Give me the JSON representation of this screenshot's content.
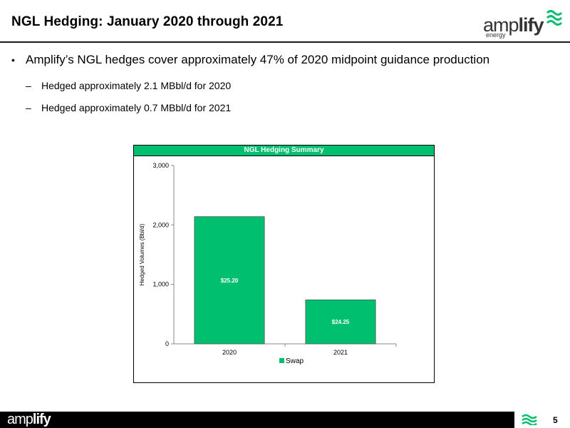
{
  "slide": {
    "title": "NGL Hedging: January 2020 through 2021",
    "bullet_main": "Amplify’s NGL hedges cover approximately 47% of 2020 midpoint guidance production",
    "sub_bullets": [
      "Hedged approximately 2.1 MBbl/d for 2020",
      "Hedged approximately 0.7 MBbl/d for 2021"
    ],
    "page_number": "5"
  },
  "logo": {
    "word_light": "amp",
    "word_bold": "lify",
    "sub": "energy"
  },
  "footer": {
    "logo_light": "amp",
    "logo_bold": "lify"
  },
  "colors": {
    "accent": "#00BF6F",
    "rule": "#1a1a1a"
  },
  "chart_data": {
    "type": "bar",
    "title": "NGL Hedging Summary",
    "categories": [
      "2020",
      "2021"
    ],
    "series": [
      {
        "name": "Swap",
        "values": [
          2140,
          740
        ],
        "labels": [
          "$25.20",
          "$24.25"
        ]
      }
    ],
    "ylabel": "Hedged Volumes (Bbl/d)",
    "xlabel": "",
    "ylim": [
      0,
      3000
    ],
    "yticks": [
      0,
      1000,
      2000,
      3000
    ],
    "ytick_labels": [
      "0",
      "1,000",
      "2,000",
      "3,000"
    ],
    "legend": "bottom",
    "grid": false
  }
}
